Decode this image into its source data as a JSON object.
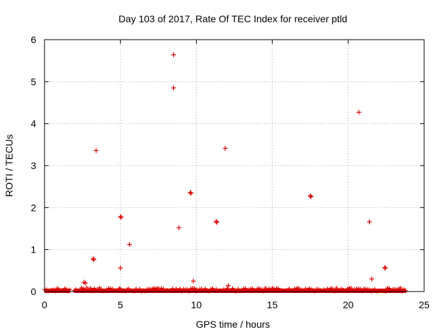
{
  "chart_data": {
    "type": "scatter",
    "title": "Day 103 of 2017, Rate Of TEC Index for receiver ptld",
    "xlabel": "GPS time / hours",
    "ylabel": "ROTI / TECUs",
    "xlim": [
      0,
      25
    ],
    "ylim": [
      0,
      6
    ],
    "xticks": [
      0,
      5,
      10,
      15,
      20,
      25
    ],
    "yticks": [
      0,
      1,
      2,
      3,
      4,
      5,
      6
    ],
    "xtick_labels": [
      "0",
      "5",
      "10",
      "15",
      "20",
      "25"
    ],
    "ytick_labels": [
      "0",
      "1",
      "2",
      "3",
      "4",
      "5",
      "6"
    ],
    "grid": true,
    "marker": "plus",
    "color": "#dd0000",
    "series": [
      {
        "name": "ROTI",
        "points": [
          [
            2.6,
            0.22
          ],
          [
            2.7,
            0.2
          ],
          [
            3.2,
            0.78
          ],
          [
            3.25,
            0.76
          ],
          [
            3.4,
            3.36
          ],
          [
            5.0,
            1.78
          ],
          [
            5.05,
            1.77
          ],
          [
            5.0,
            0.56
          ],
          [
            5.6,
            1.12
          ],
          [
            8.5,
            5.64
          ],
          [
            8.5,
            4.85
          ],
          [
            8.85,
            1.52
          ],
          [
            9.6,
            2.36
          ],
          [
            9.65,
            2.34
          ],
          [
            9.8,
            0.25
          ],
          [
            11.3,
            1.67
          ],
          [
            11.35,
            1.65
          ],
          [
            11.9,
            3.41
          ],
          [
            12.1,
            0.14
          ],
          [
            17.5,
            2.28
          ],
          [
            17.55,
            2.26
          ],
          [
            20.7,
            4.27
          ],
          [
            21.4,
            1.66
          ],
          [
            21.55,
            0.3
          ],
          [
            22.4,
            0.57
          ],
          [
            22.45,
            0.56
          ]
        ]
      }
    ],
    "baseline_band": {
      "description": "dense near-zero values",
      "segments": [
        [
          0,
          1.7
        ],
        [
          1.95,
          23.8
        ]
      ],
      "y_min": 0.0,
      "y_max": 0.07
    }
  }
}
